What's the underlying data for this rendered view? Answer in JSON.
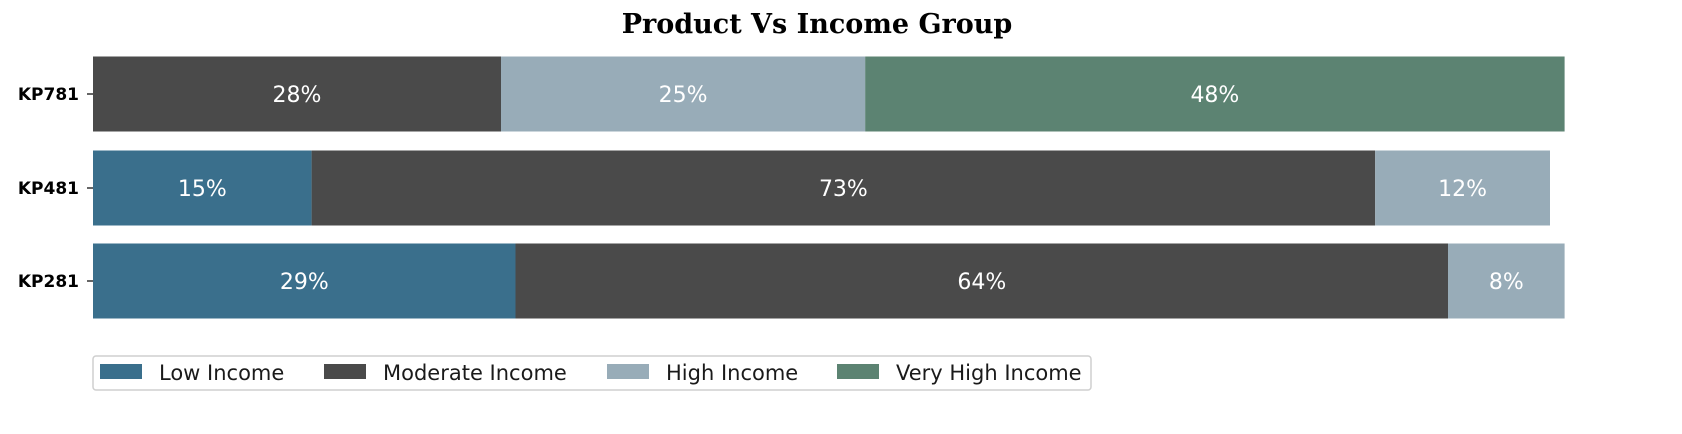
{
  "chart_data": {
    "type": "bar",
    "orientation": "horizontal",
    "stacked": true,
    "title": "Product Vs Income Group",
    "xlabel": "",
    "ylabel": "",
    "categories": [
      "KP781",
      "KP481",
      "KP281"
    ],
    "series": [
      {
        "name": "Low Income",
        "color": "#3a6f8c",
        "values": [
          0,
          15,
          29
        ],
        "labels": [
          "",
          "15%",
          "29%"
        ]
      },
      {
        "name": "Moderate Income",
        "color": "#4a4a4a",
        "values": [
          28,
          73,
          64
        ],
        "labels": [
          "28%",
          "73%",
          "64%"
        ]
      },
      {
        "name": "High Income",
        "color": "#98acb8",
        "values": [
          25,
          12,
          8
        ],
        "labels": [
          "25%",
          "12%",
          "8%"
        ]
      },
      {
        "name": "Very High Income",
        "color": "#5c8372",
        "values": [
          48,
          0,
          0
        ],
        "labels": [
          "48%",
          "",
          ""
        ]
      }
    ],
    "xlim": [
      0,
      100
    ],
    "grid": false,
    "legend_position": "bottom-left"
  }
}
